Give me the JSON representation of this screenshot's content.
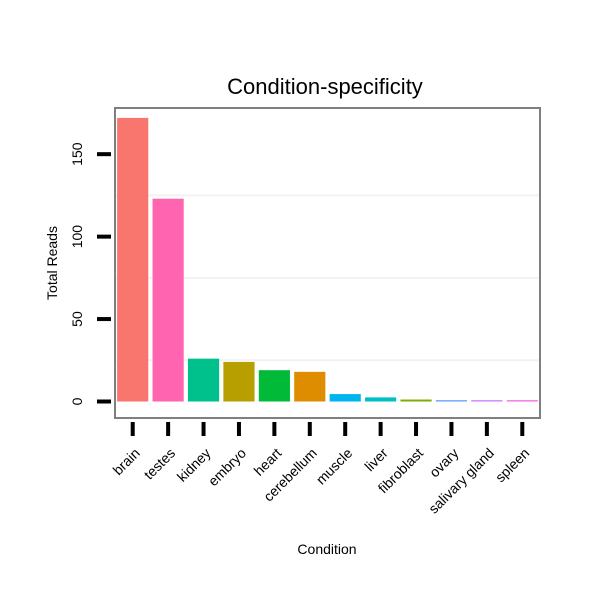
{
  "chart_data": {
    "type": "bar",
    "title": "Condition-specificity",
    "xlabel": "Condition",
    "ylabel": "Total Reads",
    "categories": [
      "brain",
      "testes",
      "kidney",
      "embryo",
      "heart",
      "cerebellum",
      "muscle",
      "liver",
      "fibroblast",
      "ovary",
      "salivary gland",
      "spleen"
    ],
    "values": [
      172,
      123,
      26,
      24,
      19,
      18,
      4.5,
      2.5,
      1.2,
      0.8,
      0.8,
      0.8
    ],
    "colors": [
      "#F8766D",
      "#FF64B0",
      "#00C08B",
      "#B79F00",
      "#00BA38",
      "#DE8C00",
      "#00B4F0",
      "#00BFC4",
      "#7CAE00",
      "#619CFF",
      "#C77CFF",
      "#F564E3"
    ],
    "ylim": [
      -10,
      178
    ],
    "yticks": [
      0,
      50,
      100,
      150
    ],
    "grid": true,
    "legend": "none"
  }
}
